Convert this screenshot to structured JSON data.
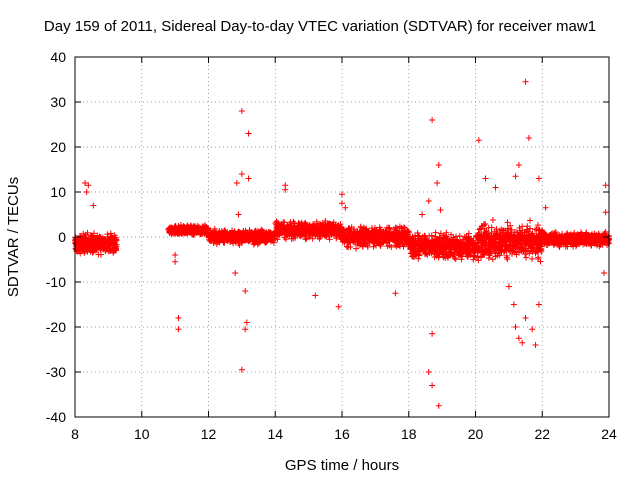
{
  "chart_data": {
    "type": "scatter",
    "title": "Day 159 of 2011, Sidereal Day-to-day VTEC variation (SDTVAR) for receiver maw1",
    "xlabel": "GPS time / hours",
    "ylabel": "SDTVAR / TECUs",
    "xlim": [
      8,
      24
    ],
    "ylim": [
      -40,
      40
    ],
    "xticks": [
      8,
      10,
      12,
      14,
      16,
      18,
      20,
      22,
      24
    ],
    "yticks": [
      -40,
      -30,
      -20,
      -10,
      0,
      10,
      20,
      30,
      40
    ],
    "grid": true,
    "marker": "+",
    "color": "#ff0000",
    "series": [
      {
        "name": "maw1",
        "band_segments": [
          {
            "x_start": 8.0,
            "x_end": 9.25,
            "center": -1.5,
            "spread": 3.0
          },
          {
            "x_start": 10.8,
            "x_end": 12.0,
            "center": 1.5,
            "spread": 1.5
          },
          {
            "x_start": 12.0,
            "x_end": 14.0,
            "center": 0.0,
            "spread": 2.0
          },
          {
            "x_start": 14.0,
            "x_end": 16.0,
            "center": 1.5,
            "spread": 2.5
          },
          {
            "x_start": 16.0,
            "x_end": 18.0,
            "center": 0.0,
            "spread": 3.0
          },
          {
            "x_start": 18.0,
            "x_end": 20.0,
            "center": -2.0,
            "spread": 3.5
          },
          {
            "x_start": 20.0,
            "x_end": 22.0,
            "center": -1.0,
            "spread": 5.0
          },
          {
            "x_start": 22.0,
            "x_end": 24.0,
            "center": -0.5,
            "spread": 2.0
          }
        ],
        "points": [
          [
            8.3,
            12
          ],
          [
            8.35,
            10
          ],
          [
            8.4,
            11.5
          ],
          [
            8.55,
            7
          ],
          [
            11.1,
            -18
          ],
          [
            11.1,
            -20.5
          ],
          [
            11.0,
            -4
          ],
          [
            11.0,
            -5.5
          ],
          [
            12.8,
            -8
          ],
          [
            13.0,
            28
          ],
          [
            13.0,
            14
          ],
          [
            13.1,
            -12
          ],
          [
            13.1,
            -20.5
          ],
          [
            13.15,
            -19
          ],
          [
            13.2,
            23
          ],
          [
            12.85,
            12
          ],
          [
            13.0,
            -29.5
          ],
          [
            13.2,
            13
          ],
          [
            12.9,
            5
          ],
          [
            14.3,
            11.5
          ],
          [
            14.3,
            10.5
          ],
          [
            15.2,
            -13
          ],
          [
            15.9,
            -15.5
          ],
          [
            16.0,
            9.5
          ],
          [
            16.0,
            7.5
          ],
          [
            16.1,
            6.5
          ],
          [
            17.6,
            -12.5
          ],
          [
            18.6,
            -30
          ],
          [
            18.7,
            -33
          ],
          [
            18.7,
            -21.5
          ],
          [
            18.7,
            26
          ],
          [
            18.9,
            -37.5
          ],
          [
            18.9,
            16
          ],
          [
            18.85,
            12
          ],
          [
            18.4,
            5
          ],
          [
            18.6,
            8
          ],
          [
            18.95,
            6
          ],
          [
            20.1,
            21.5
          ],
          [
            20.3,
            13
          ],
          [
            20.6,
            11
          ],
          [
            21.2,
            13.5
          ],
          [
            21.3,
            16
          ],
          [
            21.5,
            34.5
          ],
          [
            21.6,
            22
          ],
          [
            21.4,
            -23.5
          ],
          [
            21.3,
            -22.5
          ],
          [
            21.2,
            -20
          ],
          [
            21.5,
            -18
          ],
          [
            21.8,
            -24
          ],
          [
            21.9,
            13
          ],
          [
            21.9,
            -15
          ],
          [
            21.7,
            -20.5
          ],
          [
            22.1,
            6.5
          ],
          [
            21.15,
            -15
          ],
          [
            21.0,
            -11
          ],
          [
            23.9,
            11.5
          ],
          [
            23.9,
            5.5
          ],
          [
            23.85,
            -8
          ]
        ]
      }
    ]
  }
}
